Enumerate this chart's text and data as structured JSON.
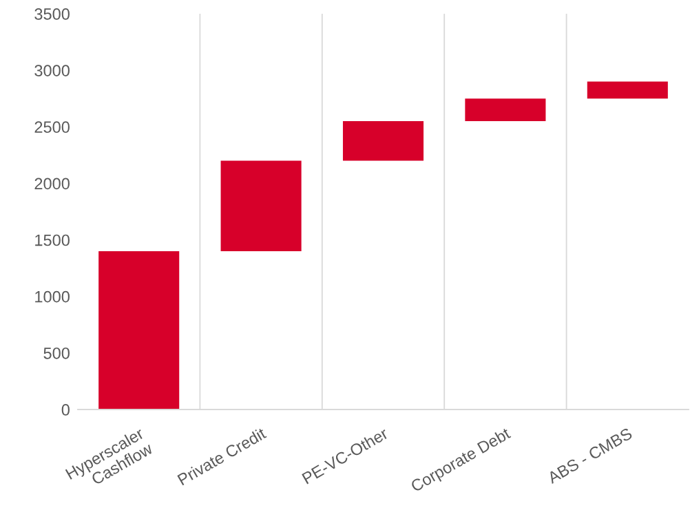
{
  "chart_data": {
    "type": "bar",
    "categories": [
      "Hyperscaler\nCashflow",
      "Private Credit",
      "PE-VC-Other",
      "Corporate Debt",
      "ABS - CMBS"
    ],
    "values": [
      1400,
      800,
      350,
      200,
      150
    ],
    "base": [
      0,
      1400,
      2200,
      2550,
      2750
    ],
    "color": "#d7002a",
    "ylim": [
      0,
      3500
    ],
    "yticks": [
      0,
      500,
      1000,
      1500,
      2000,
      2500,
      3000,
      3500
    ],
    "grid": "x"
  }
}
